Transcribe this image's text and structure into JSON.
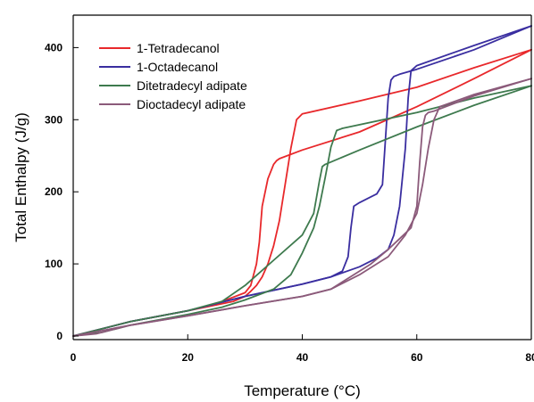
{
  "chart_data": {
    "type": "line",
    "xlabel": "Temperature (°C)",
    "ylabel": "Total Enthalpy (J/g)",
    "xlim": [
      0,
      80
    ],
    "ylim": [
      -5,
      445
    ],
    "x_ticks": [
      "0",
      "20",
      "40",
      "60",
      "80"
    ],
    "y_ticks": [
      "0",
      "100",
      "200",
      "300",
      "400"
    ],
    "x_tick_values": [
      0,
      20,
      40,
      60,
      80
    ],
    "y_tick_values": [
      0,
      100,
      200,
      300,
      400
    ],
    "legend_position": "top-left",
    "grid": false,
    "series": [
      {
        "name": "1-Tetradecanol",
        "color": "#e8282b",
        "heating": [
          [
            0,
            0
          ],
          [
            10,
            20
          ],
          [
            20,
            35
          ],
          [
            28,
            48
          ],
          [
            30,
            55
          ],
          [
            31,
            62
          ],
          [
            32,
            70
          ],
          [
            33,
            82
          ],
          [
            34,
            100
          ],
          [
            35,
            125
          ],
          [
            36,
            160
          ],
          [
            37,
            210
          ],
          [
            38,
            260
          ],
          [
            39,
            300
          ],
          [
            40,
            308
          ],
          [
            50,
            326
          ],
          [
            60,
            345
          ],
          [
            70,
            372
          ],
          [
            80,
            397
          ]
        ],
        "cooling": [
          [
            80,
            397
          ],
          [
            70,
            357
          ],
          [
            60,
            318
          ],
          [
            50,
            283
          ],
          [
            40,
            258
          ],
          [
            36,
            246
          ],
          [
            35.5,
            243
          ],
          [
            35,
            238
          ],
          [
            34,
            218
          ],
          [
            33,
            180
          ],
          [
            32.5,
            130
          ],
          [
            32,
            100
          ],
          [
            31.5,
            85
          ],
          [
            31,
            70
          ],
          [
            30,
            60
          ],
          [
            25,
            45
          ],
          [
            20,
            35
          ],
          [
            10,
            20
          ],
          [
            0,
            0
          ]
        ]
      },
      {
        "name": "1-Octadecanol",
        "color": "#3a2ea0",
        "heating": [
          [
            0,
            0
          ],
          [
            10,
            20
          ],
          [
            20,
            35
          ],
          [
            30,
            55
          ],
          [
            40,
            72
          ],
          [
            45,
            82
          ],
          [
            50,
            96
          ],
          [
            53,
            108
          ],
          [
            55,
            120
          ],
          [
            56,
            140
          ],
          [
            57,
            180
          ],
          [
            58,
            260
          ],
          [
            58.5,
            330
          ],
          [
            59,
            368
          ],
          [
            60,
            375
          ],
          [
            70,
            403
          ],
          [
            80,
            430
          ]
        ],
        "cooling": [
          [
            80,
            430
          ],
          [
            70,
            397
          ],
          [
            60,
            370
          ],
          [
            57,
            363
          ],
          [
            56,
            360
          ],
          [
            55.5,
            355
          ],
          [
            55,
            330
          ],
          [
            54.5,
            270
          ],
          [
            54,
            210
          ],
          [
            53,
            197
          ],
          [
            52,
            193
          ],
          [
            50,
            185
          ],
          [
            49,
            180
          ],
          [
            48.5,
            150
          ],
          [
            48,
            110
          ],
          [
            47,
            90
          ],
          [
            45,
            82
          ],
          [
            40,
            72
          ],
          [
            30,
            55
          ],
          [
            20,
            35
          ],
          [
            10,
            20
          ],
          [
            0,
            0
          ]
        ]
      },
      {
        "name": "Ditetradecyl adipate",
        "color": "#3e7a4e",
        "heating": [
          [
            0,
            0
          ],
          [
            5,
            5
          ],
          [
            10,
            15
          ],
          [
            20,
            30
          ],
          [
            26,
            40
          ],
          [
            30,
            50
          ],
          [
            35,
            65
          ],
          [
            38,
            85
          ],
          [
            40,
            115
          ],
          [
            42,
            150
          ],
          [
            43,
            180
          ],
          [
            44,
            220
          ],
          [
            45,
            262
          ],
          [
            46,
            285
          ],
          [
            47,
            288
          ],
          [
            60,
            310
          ],
          [
            70,
            330
          ],
          [
            80,
            347
          ]
        ],
        "cooling": [
          [
            80,
            347
          ],
          [
            70,
            320
          ],
          [
            60,
            290
          ],
          [
            50,
            258
          ],
          [
            44,
            238
          ],
          [
            43.5,
            235
          ],
          [
            43,
            215
          ],
          [
            42,
            170
          ],
          [
            40,
            140
          ],
          [
            35,
            105
          ],
          [
            30,
            70
          ],
          [
            26,
            48
          ],
          [
            20,
            35
          ],
          [
            10,
            20
          ],
          [
            0,
            0
          ]
        ]
      },
      {
        "name": "Dioctadecyl adipate",
        "color": "#8b5a7a",
        "heating": [
          [
            0,
            0
          ],
          [
            4,
            3
          ],
          [
            10,
            15
          ],
          [
            20,
            28
          ],
          [
            30,
            42
          ],
          [
            40,
            55
          ],
          [
            45,
            65
          ],
          [
            50,
            85
          ],
          [
            55,
            110
          ],
          [
            58,
            140
          ],
          [
            60,
            170
          ],
          [
            61,
            210
          ],
          [
            62,
            260
          ],
          [
            63,
            300
          ],
          [
            64,
            318
          ],
          [
            70,
            335
          ],
          [
            80,
            357
          ]
        ],
        "cooling": [
          [
            80,
            357
          ],
          [
            70,
            333
          ],
          [
            63,
            312
          ],
          [
            62,
            310
          ],
          [
            61.5,
            306
          ],
          [
            61,
            290
          ],
          [
            60.5,
            240
          ],
          [
            60,
            180
          ],
          [
            59,
            150
          ],
          [
            57,
            135
          ],
          [
            55,
            120
          ],
          [
            52,
            100
          ],
          [
            48,
            80
          ],
          [
            45,
            65
          ],
          [
            40,
            55
          ],
          [
            30,
            42
          ],
          [
            20,
            28
          ],
          [
            10,
            15
          ],
          [
            0,
            0
          ]
        ]
      }
    ]
  }
}
